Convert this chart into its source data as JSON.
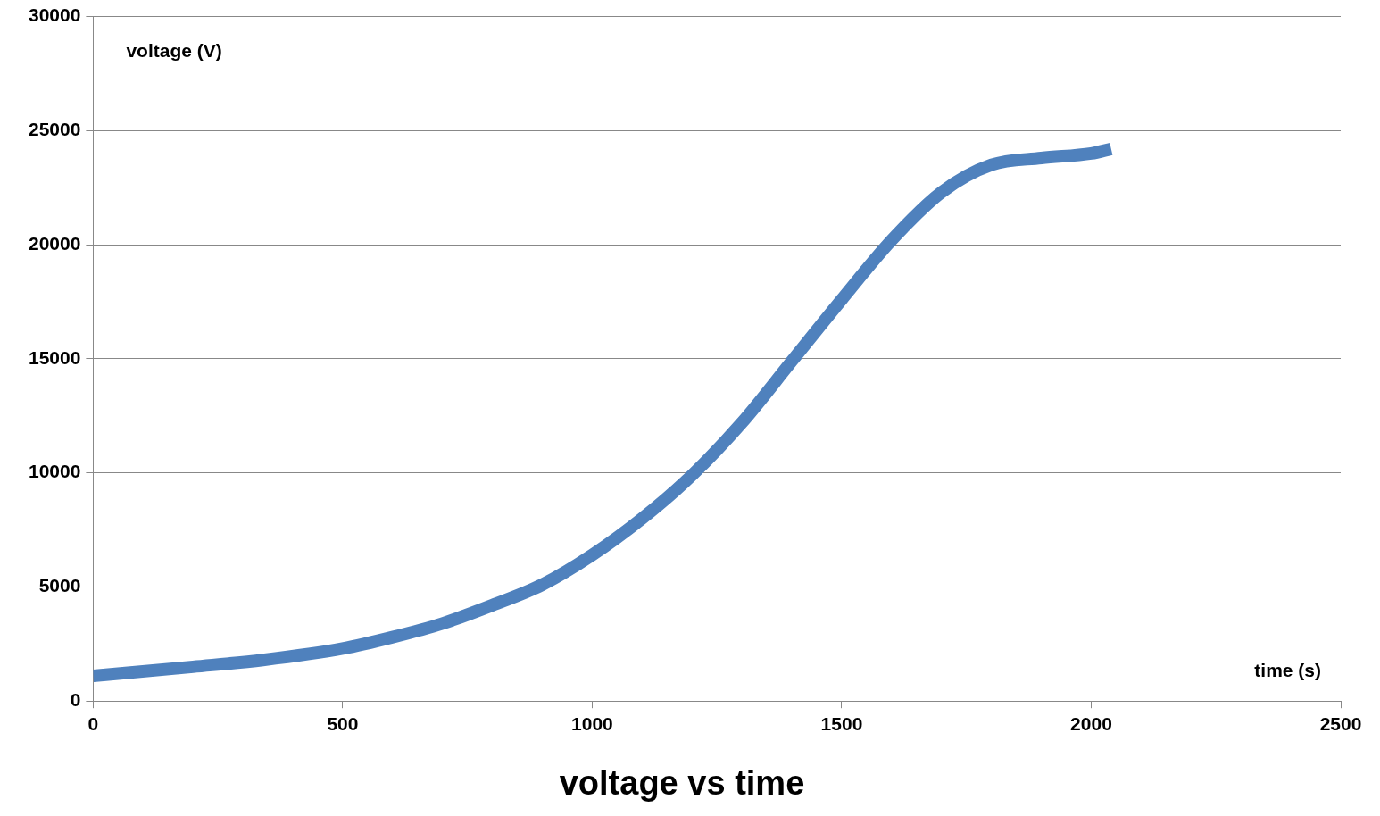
{
  "chart_data": {
    "type": "line",
    "title": "voltage vs time",
    "xlabel": "time (s)",
    "ylabel": "voltage (V)",
    "x": [
      0,
      200,
      340,
      500,
      600,
      700,
      800,
      900,
      1000,
      1100,
      1200,
      1300,
      1400,
      1500,
      1600,
      1700,
      1800,
      1900,
      2000,
      2040
    ],
    "series": [
      {
        "color": "#4f81bd",
        "values": [
          1100,
          1500,
          1800,
          2300,
          2800,
          3400,
          4200,
          5100,
          6400,
          8000,
          9900,
          12200,
          14900,
          17600,
          20200,
          22300,
          23500,
          23800,
          24000,
          24200
        ]
      }
    ],
    "xlim": [
      0,
      2500
    ],
    "xticks": [
      0,
      500,
      1000,
      1500,
      2000,
      2500
    ],
    "ylim": [
      0,
      30000
    ],
    "yticks": [
      0,
      5000,
      10000,
      15000,
      20000,
      25000,
      30000
    ],
    "grid": "y",
    "legend": false,
    "marker": "none",
    "line_style": "solid"
  }
}
